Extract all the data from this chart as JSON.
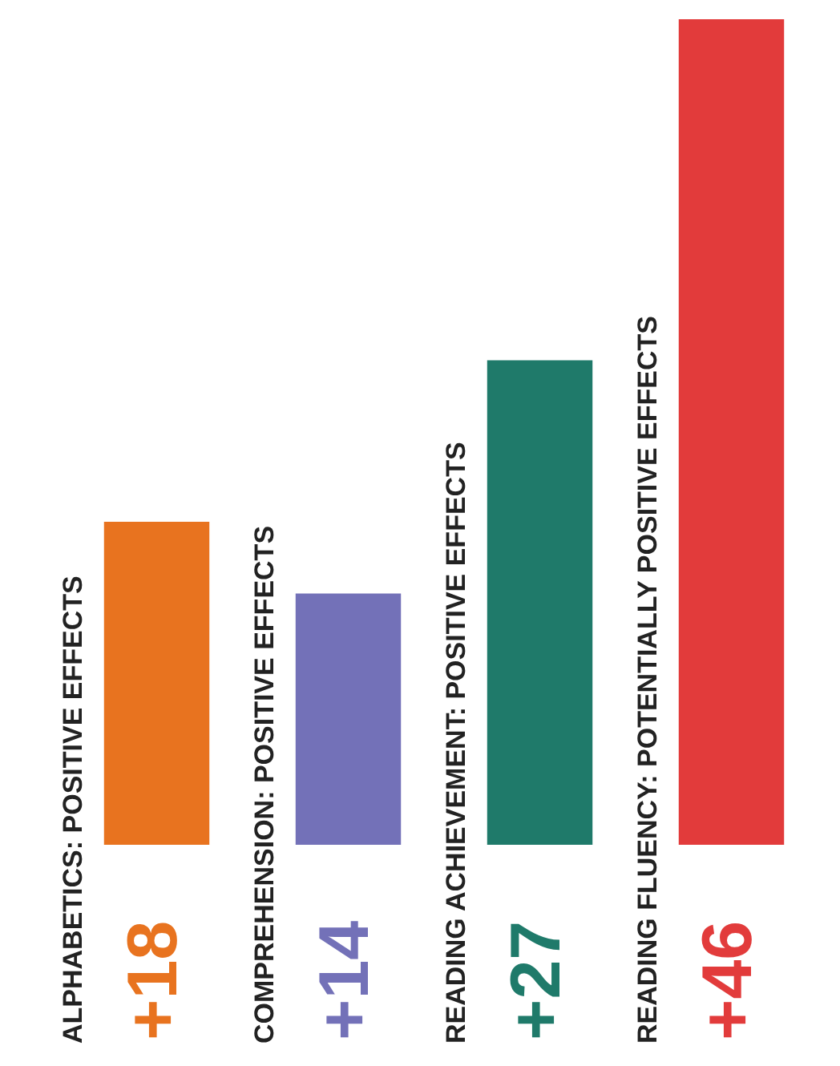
{
  "chart_data": {
    "type": "bar",
    "categories": [
      "ALPHABETICS: POSITIVE EFFECTS",
      "COMPREHENSION: POSITIVE EFFECTS",
      "READING ACHIEVEMENT: POSITIVE EFFECTS",
      "READING FLUENCY: POTENTIALLY POSITIVE EFFECTS"
    ],
    "values": [
      18,
      14,
      27,
      46
    ],
    "colors": [
      "#e8731f",
      "#7371b8",
      "#1f7a6a",
      "#e23b3b"
    ],
    "value_labels": [
      "+18",
      "+14",
      "+27",
      "+46"
    ]
  }
}
